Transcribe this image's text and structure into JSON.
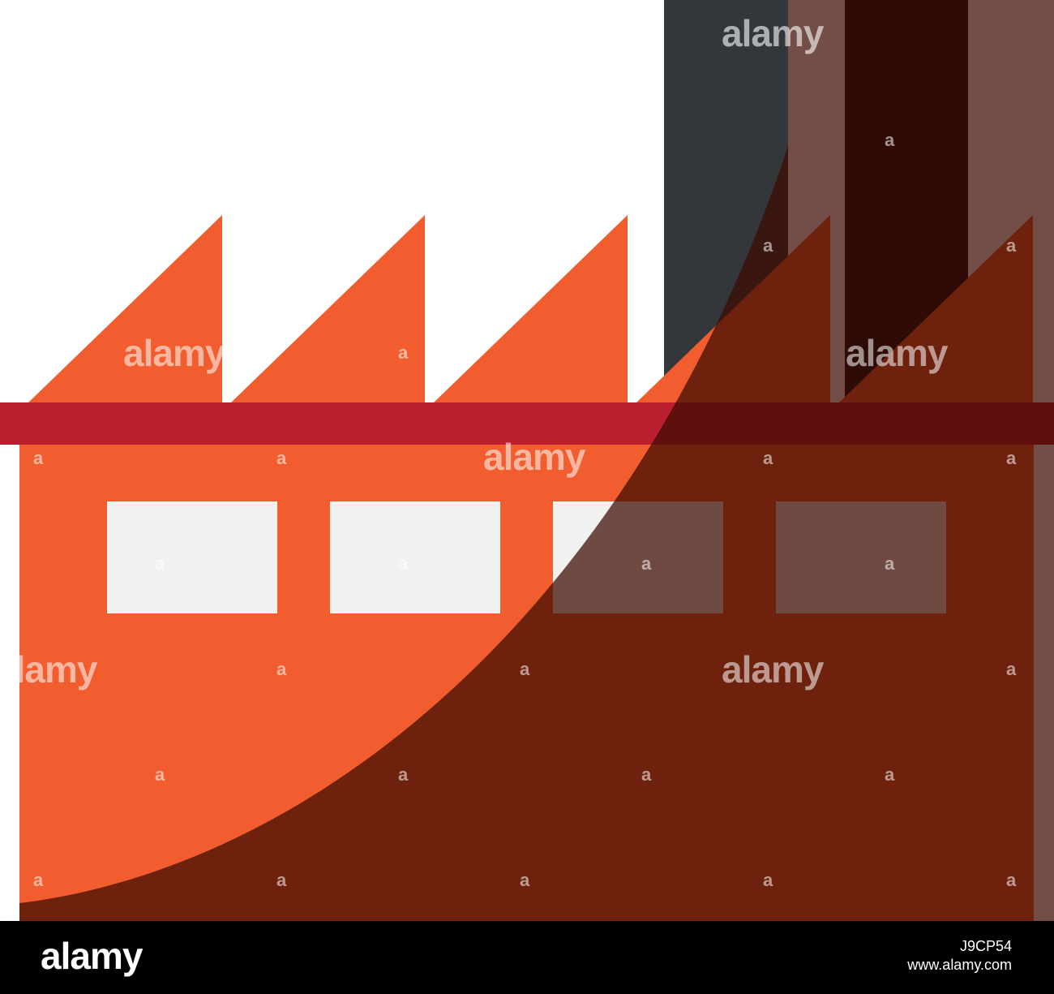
{
  "illustration": {
    "subject": "factory-icon",
    "colors": {
      "roof_orange": "#F15D2E",
      "band_red": "#BB1E2E",
      "band_dark": "#520015",
      "body_orange": "#F15D2E",
      "shadow_brown": "#5F1E0F",
      "chimney_gray": "#33373A",
      "chimney_dark": "#0E1315",
      "window_light": "#F1F1EF",
      "window_gray": "#616566"
    }
  },
  "watermark": {
    "word": "alamy",
    "letter": "a"
  },
  "footer": {
    "logo": "alamy",
    "image_id": "J9CP54",
    "site": "www.alamy.com"
  }
}
